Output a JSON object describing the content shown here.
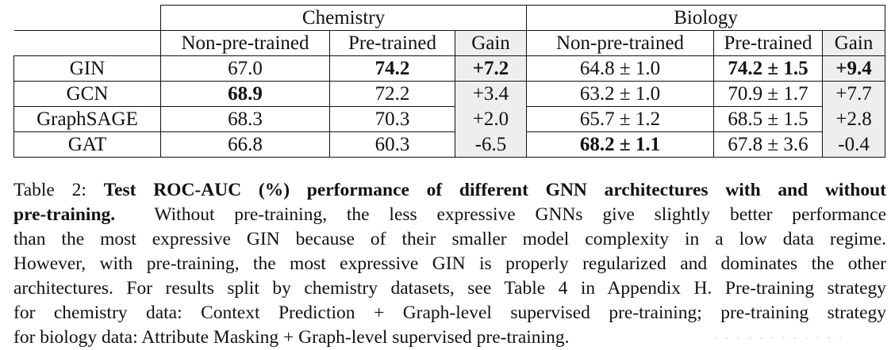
{
  "table": {
    "groups": [
      "Chemistry",
      "Biology"
    ],
    "columns": [
      "Non-pre-trained",
      "Pre-trained",
      "Gain",
      "Non-pre-trained",
      "Pre-trained",
      "Gain"
    ],
    "rows": [
      {
        "model": "GIN",
        "chem_np": "67.0",
        "chem_pt": "74.2",
        "chem_gain": "+7.2",
        "bio_np": "64.8 ± 1.0",
        "bio_pt": "74.2 ± 1.5",
        "bio_gain": "+9.4"
      },
      {
        "model": "GCN",
        "chem_np": "68.9",
        "chem_pt": "72.2",
        "chem_gain": "+3.4",
        "bio_np": "63.2 ± 1.0",
        "bio_pt": "70.9 ± 1.7",
        "bio_gain": "+7.7"
      },
      {
        "model": "GraphSAGE",
        "chem_np": "68.3",
        "chem_pt": "70.3",
        "chem_gain": "+2.0",
        "bio_np": "65.7 ± 1.2",
        "bio_pt": "68.5 ± 1.5",
        "bio_gain": "+2.8"
      },
      {
        "model": "GAT",
        "chem_np": "66.8",
        "chem_pt": "60.3",
        "chem_gain": "-6.5",
        "bio_np": "68.2 ± 1.1",
        "bio_pt": "67.8 ± 3.6",
        "bio_gain": "-0.4"
      }
    ]
  },
  "caption": {
    "label": "Table 2:",
    "title_part1": "Test ROC-AUC (%) performance of different GNN architectures with and without",
    "title_part2": "pre-training.",
    "line2_rest": "Without pre-training, the less expressive GNNs give slightly better performance",
    "line3": "than the most expressive GIN because of their smaller model complexity in a low data regime.",
    "line4": "However, with pre-training, the most expressive GIN is properly regularized and dominates the other",
    "line5": "architectures. For results split by chemistry datasets, see Table 4 in Appendix H. Pre-training strategy",
    "line6": "for chemistry data: Context Prediction + Graph-level supervised pre-training; pre-training strategy",
    "line7": "for biology data: Attribute Masking + Graph-level supervised pre-training."
  }
}
